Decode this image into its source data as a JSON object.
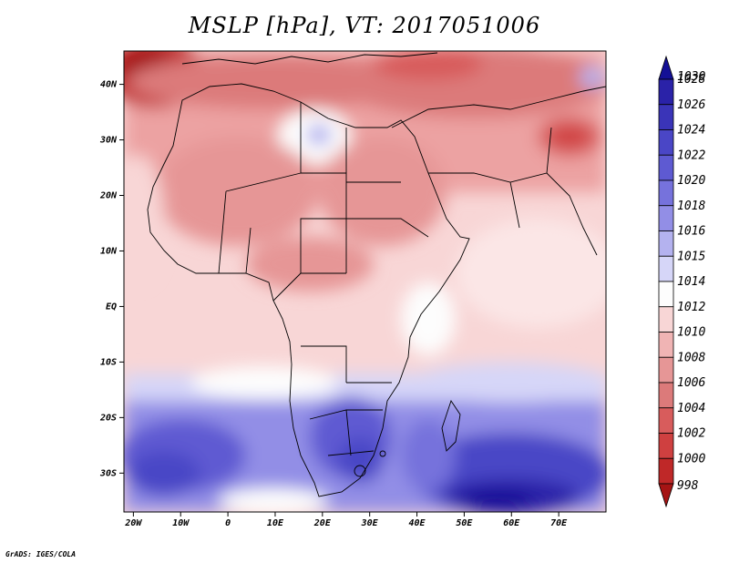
{
  "title": "MSLP [hPa], VT: 2017051006",
  "footer": "GrADS: IGES/COLA",
  "map": {
    "lat_range": [
      -37,
      46
    ],
    "lon_range": [
      -22,
      80
    ],
    "lat_ticks": [
      {
        "value": 40,
        "label": "40N"
      },
      {
        "value": 30,
        "label": "30N"
      },
      {
        "value": 20,
        "label": "20N"
      },
      {
        "value": 10,
        "label": "10N"
      },
      {
        "value": 0,
        "label": "EQ"
      },
      {
        "value": -10,
        "label": "10S"
      },
      {
        "value": -20,
        "label": "20S"
      },
      {
        "value": -30,
        "label": "30S"
      }
    ],
    "lon_ticks": [
      {
        "value": -20,
        "label": "20W"
      },
      {
        "value": -10,
        "label": "10W"
      },
      {
        "value": 0,
        "label": "0"
      },
      {
        "value": 10,
        "label": "10E"
      },
      {
        "value": 20,
        "label": "20E"
      },
      {
        "value": 30,
        "label": "30E"
      },
      {
        "value": 40,
        "label": "40E"
      },
      {
        "value": 50,
        "label": "50E"
      },
      {
        "value": 60,
        "label": "60E"
      },
      {
        "value": 70,
        "label": "70E"
      }
    ]
  },
  "colorbar": {
    "levels": [
      {
        "label": "1030",
        "color": "#141096"
      },
      {
        "label": "1028",
        "color": "#2a22a8"
      },
      {
        "label": "1026",
        "color": "#3a34b8"
      },
      {
        "label": "1024",
        "color": "#4a46c6"
      },
      {
        "label": "1022",
        "color": "#5e5ad2"
      },
      {
        "label": "1020",
        "color": "#7672dc"
      },
      {
        "label": "1018",
        "color": "#928ee6"
      },
      {
        "label": "1016",
        "color": "#b4b2ef"
      },
      {
        "label": "1015",
        "color": "#d6d6f8"
      },
      {
        "label": "1014",
        "color": "#fdfdfd"
      },
      {
        "label": "1012",
        "color": "#f8d6d6"
      },
      {
        "label": "1010",
        "color": "#f0b4b4"
      },
      {
        "label": "1008",
        "color": "#e69696"
      },
      {
        "label": "1006",
        "color": "#dc7a7a"
      },
      {
        "label": "1004",
        "color": "#d85c5c"
      },
      {
        "label": "1002",
        "color": "#cf4040"
      },
      {
        "label": "1000",
        "color": "#bf2828"
      },
      {
        "label": "998",
        "color": "#a51414"
      }
    ]
  }
}
